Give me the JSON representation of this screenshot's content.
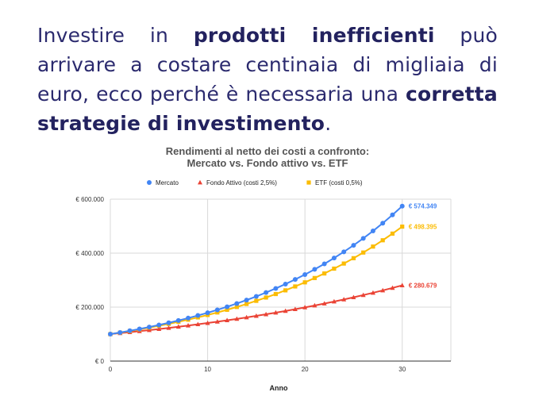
{
  "headline": {
    "part1": "Investire in ",
    "bold1": "prodotti inefficienti",
    "part2": " può arrivare a costare centinaia di migliaia di euro, ecco perché è necessaria una ",
    "bold2": "corretta strategie di investimento",
    "part3": "."
  },
  "chart_data": {
    "type": "line",
    "title_line1": "Rendimenti al netto dei costi a confronto:",
    "title_line2": "Mercato vs. Fondo attivo vs. ETF",
    "xlabel": "Anno",
    "ylabel": "",
    "xlim": [
      0,
      35
    ],
    "ylim": [
      0,
      600000
    ],
    "x_ticks": [
      "0",
      "10",
      "20",
      "30"
    ],
    "y_ticks": [
      "€ 0",
      "€ 200.000",
      "€ 400.000",
      "€ 600.000"
    ],
    "grid": true,
    "legend_position": "top",
    "x": [
      0,
      1,
      2,
      3,
      4,
      5,
      6,
      7,
      8,
      9,
      10,
      11,
      12,
      13,
      14,
      15,
      16,
      17,
      18,
      19,
      20,
      21,
      22,
      23,
      24,
      25,
      26,
      27,
      28,
      29,
      30
    ],
    "series": [
      {
        "name": "Mercato",
        "color": "#4285f4",
        "marker": "circle",
        "end_label": "€ 574.349",
        "values": [
          100000,
          106000,
          112360,
          119102,
          126248,
          133823,
          141852,
          150363,
          159385,
          168948,
          179085,
          189830,
          201220,
          213293,
          226090,
          239656,
          254035,
          269277,
          285434,
          302560,
          320714,
          339956,
          360354,
          381975,
          404893,
          429187,
          454938,
          482235,
          511169,
          541839,
          574349
        ]
      },
      {
        "name": "Fondo Attivo (costi 2,5%)",
        "color": "#ea4335",
        "marker": "triangle",
        "end_label": "€ 280.679",
        "values": [
          100000,
          103500,
          107123,
          110872,
          114752,
          118769,
          122926,
          127228,
          131681,
          136290,
          141060,
          145997,
          151107,
          156396,
          161870,
          167535,
          173399,
          179468,
          185749,
          192251,
          198979,
          205944,
          213152,
          220612,
          228333,
          236325,
          244597,
          253158,
          262018,
          271189,
          280679
        ]
      },
      {
        "name": "ETF (costi 0,5%)",
        "color": "#fbbc04",
        "marker": "square",
        "end_label": "€ 498.395",
        "values": [
          100000,
          105500,
          111303,
          117424,
          123882,
          130696,
          137884,
          145468,
          153469,
          161909,
          170814,
          180209,
          190121,
          200577,
          211609,
          223248,
          235526,
          248480,
          262147,
          276564,
          291775,
          307823,
          324754,
          342615,
          361458,
          381338,
          402312,
          424439,
          447783,
          472411,
          498395
        ]
      }
    ]
  }
}
